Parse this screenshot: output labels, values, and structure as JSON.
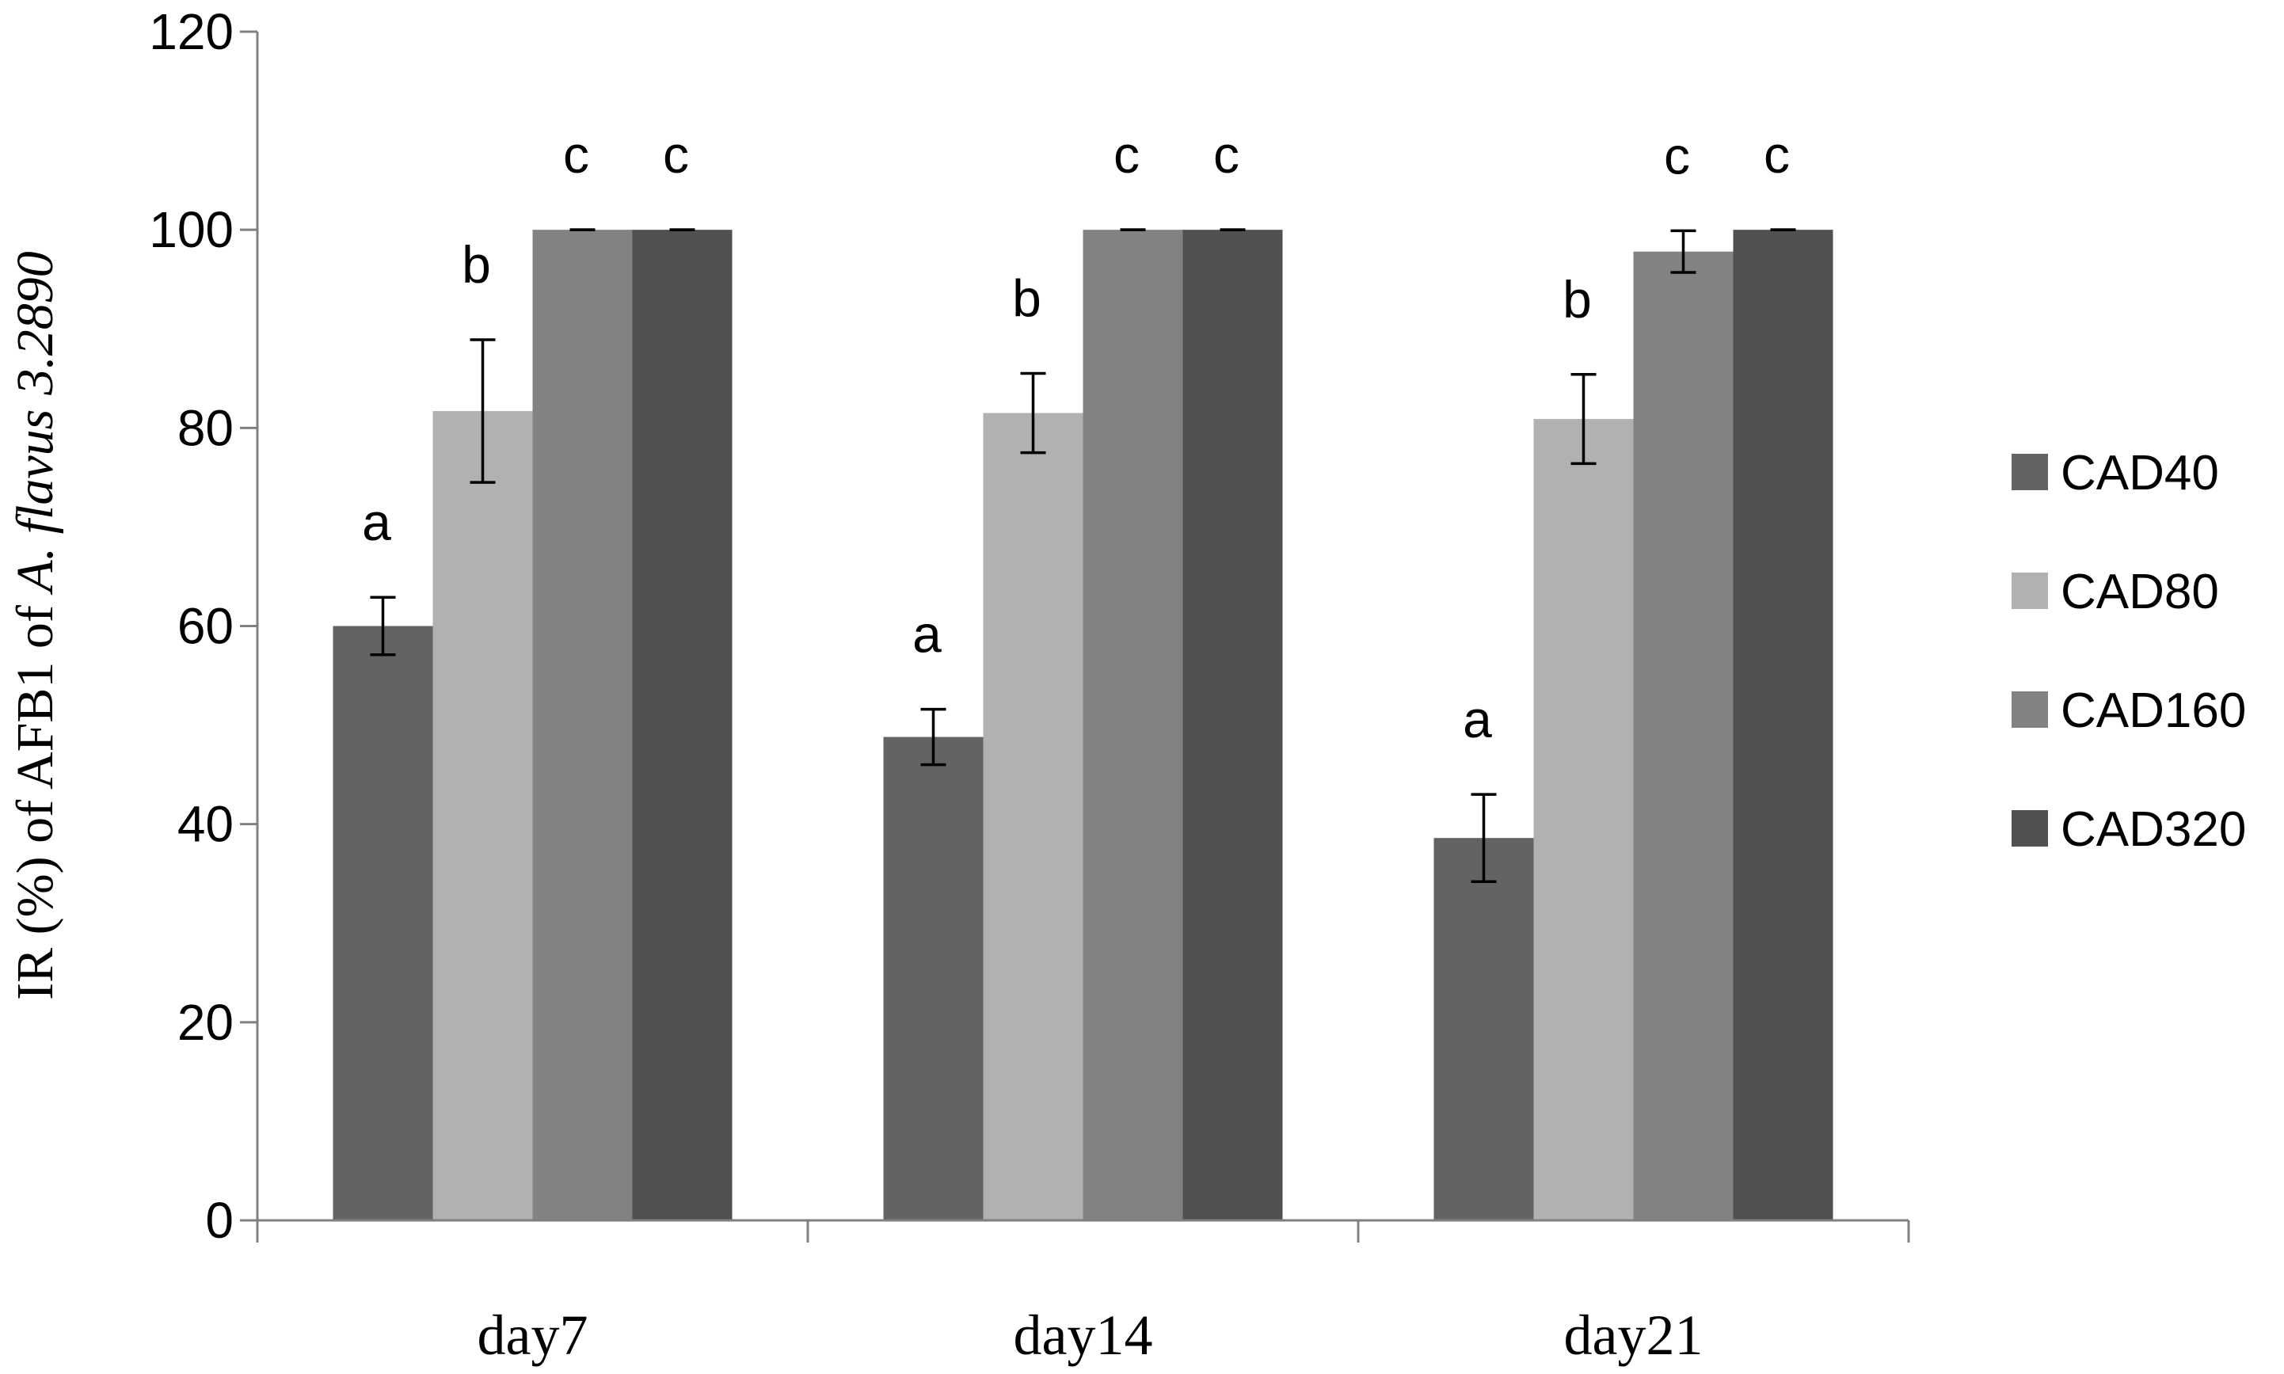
{
  "chart_data": {
    "type": "bar",
    "title": "",
    "xlabel": "",
    "ylabel": {
      "prefix": "IR (%) of AFB1 of ",
      "species": "A. flavus",
      "strain": "3.2890"
    },
    "ylim": [
      0,
      120
    ],
    "yticks": [
      "0",
      "20",
      "40",
      "60",
      "80",
      "100",
      "120"
    ],
    "categories": [
      "day7",
      "day14",
      "day21"
    ],
    "legend_position": "right",
    "series": [
      {
        "name": "CAD40",
        "color": "#636363",
        "values": [
          60,
          48.8,
          38.6
        ],
        "errors": [
          2.9,
          2.8,
          4.4
        ],
        "letters": [
          "a",
          "a",
          "a"
        ]
      },
      {
        "name": "CAD80",
        "color": "#b1b1b1",
        "values": [
          81.7,
          81.5,
          80.9
        ],
        "errors": [
          7.2,
          4.0,
          4.5
        ],
        "letters": [
          "b",
          "b",
          "b"
        ]
      },
      {
        "name": "CAD160",
        "color": "#828282",
        "values": [
          100,
          100,
          97.8
        ],
        "errors": [
          0,
          0,
          2.1
        ],
        "letters": [
          "c",
          "c",
          "c"
        ]
      },
      {
        "name": "CAD320",
        "color": "#505050",
        "values": [
          100,
          100,
          100
        ],
        "errors": [
          0,
          0,
          0
        ],
        "letters": [
          "c",
          "c",
          "c"
        ]
      }
    ]
  }
}
